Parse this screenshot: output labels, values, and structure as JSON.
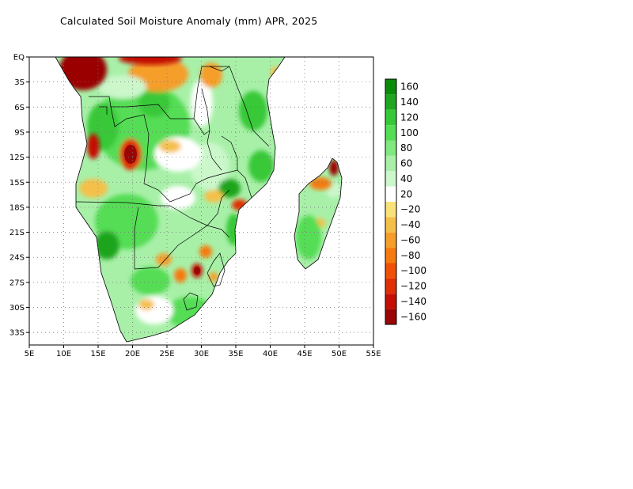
{
  "title": "Calculated Soil Moisture Anomaly (mm) APR, 2025",
  "axes": {
    "lon_ticks": [
      "5E",
      "10E",
      "15E",
      "20E",
      "25E",
      "30E",
      "35E",
      "40E",
      "45E",
      "50E",
      "55E"
    ],
    "lat_ticks": [
      "EQ",
      "3S",
      "6S",
      "9S",
      "12S",
      "15S",
      "18S",
      "21S",
      "24S",
      "27S",
      "30S",
      "33S"
    ],
    "lon_range": [
      5,
      55
    ],
    "lat_range": [
      0,
      -34.5
    ],
    "grid": "dotted"
  },
  "legend": {
    "placement": "right",
    "entries": [
      {
        "label": "160",
        "color": "#0a8c0a"
      },
      {
        "label": "140",
        "color": "#1fa51f"
      },
      {
        "label": "120",
        "color": "#37c837"
      },
      {
        "label": "100",
        "color": "#55dd55"
      },
      {
        "label": "80",
        "color": "#7fe87f"
      },
      {
        "label": "60",
        "color": "#a8f0a8"
      },
      {
        "label": "40",
        "color": "#cbf7cb"
      },
      {
        "label": "20",
        "color": "#ffffff"
      },
      {
        "label": "−20",
        "color": "#f9e27a"
      },
      {
        "label": "−40",
        "color": "#f5c04a"
      },
      {
        "label": "−60",
        "color": "#f59e2a"
      },
      {
        "label": "−80",
        "color": "#f57a10"
      },
      {
        "label": "−100",
        "color": "#f05008"
      },
      {
        "label": "−120",
        "color": "#e02e06"
      },
      {
        "label": "−140",
        "color": "#c40f05"
      },
      {
        "label": "−160",
        "color": "#9a0606"
      }
    ]
  }
}
